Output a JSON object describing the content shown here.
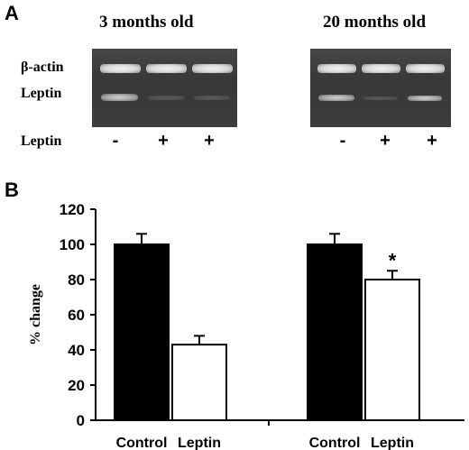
{
  "panel_a": {
    "letter": "A",
    "groups": [
      {
        "title": "3 months old",
        "treatment": [
          "-",
          "+",
          "+"
        ]
      },
      {
        "title": "20 months old",
        "treatment": [
          "-",
          "+",
          "+"
        ]
      }
    ],
    "row_labels": {
      "actin": "β-actin",
      "leptin": "Leptin"
    },
    "treatment_label": "Leptin"
  },
  "panel_b": {
    "letter": "B"
  },
  "chart_data": {
    "type": "bar",
    "ylabel": "% change",
    "ylim": [
      0,
      120
    ],
    "yticks": [
      0,
      20,
      40,
      60,
      80,
      100,
      120
    ],
    "bars": [
      {
        "group": "3 months old",
        "label": "Control",
        "value": 100,
        "error": 6,
        "fill": "#000000"
      },
      {
        "group": "3 months old",
        "label": "Leptin",
        "value": 43,
        "error": 5,
        "fill": "#ffffff"
      },
      {
        "group": "20 months old",
        "label": "Control",
        "value": 100,
        "error": 6,
        "fill": "#000000"
      },
      {
        "group": "20 months old",
        "label": "Leptin",
        "value": 80,
        "error": 5,
        "fill": "#ffffff",
        "annotation": "*"
      }
    ]
  }
}
